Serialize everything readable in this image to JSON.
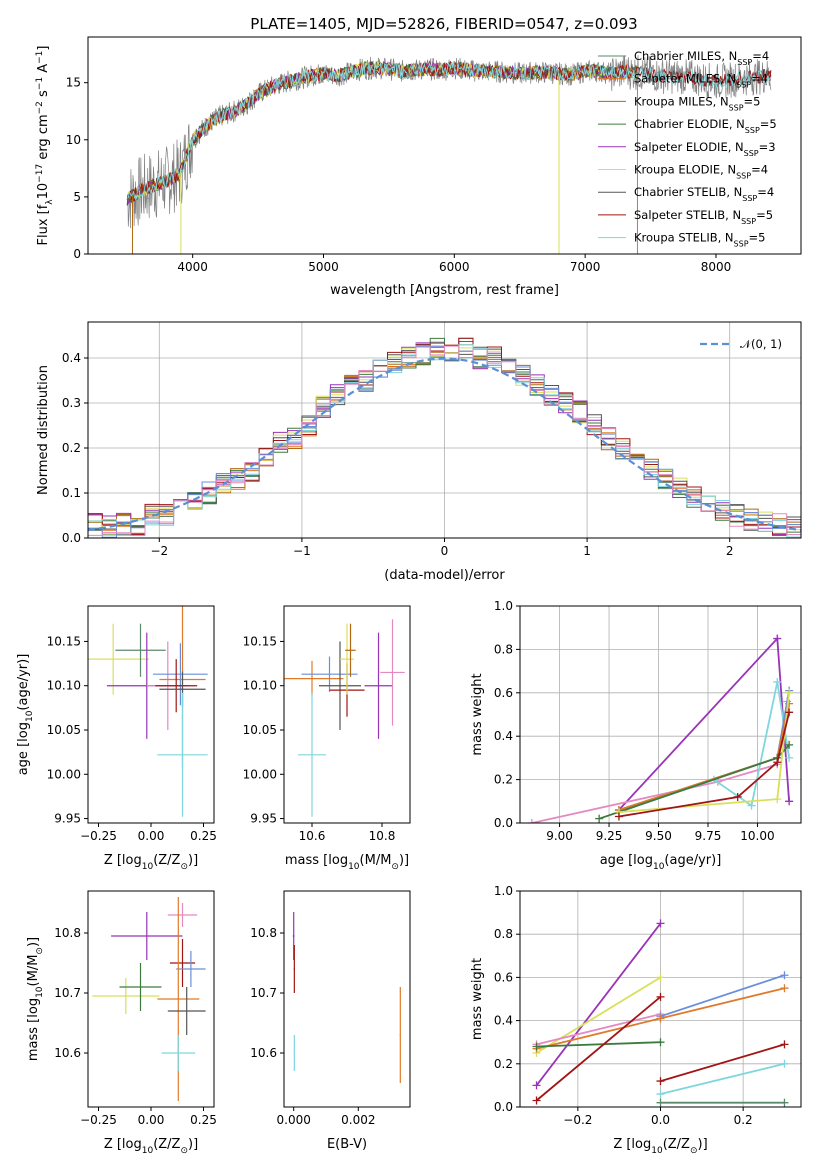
{
  "colors": {
    "Chabrier MILES": "#5b8a6a",
    "Salpeter MILES": "#e0731f",
    "Kroupa MILES": "#b06a10",
    "Chabrier ELODIE": "#3d7a3d",
    "Salpeter ELODIE": "#9933b8",
    "Kroupa ELODIE": "#d8e05a",
    "Chabrier STELIB": "#555555",
    "Salpeter STELIB": "#a01515",
    "Kroupa STELIB": "#7fd6dc",
    "extra_blue": "#6a8fd8",
    "extra_pink": "#e58ac0",
    "extra_orange": "#e07a2a",
    "normal_line": "#5b8fd6"
  },
  "chart_data": [
    {
      "type": "line",
      "title": "PLATE=1405, MJD=52826, FIBERID=0547, z=0.093",
      "xlabel": "wavelength [Angstrom, rest frame]",
      "ylabel_main": "Flux [f",
      "ylabel_sub": "λ",
      "ylabel_rest": "10",
      "ylabel_exp1": "−17",
      "ylabel_mid": " erg cm",
      "ylabel_exp2": "−2",
      "ylabel_mid2": " s",
      "ylabel_exp3": "−1",
      "ylabel_end": " A",
      "ylabel_exp4": "−1",
      "ylabel_close": "]",
      "xlim": [
        3200,
        8650
      ],
      "ylim": [
        0,
        19
      ],
      "xticks": [
        "4000",
        "5000",
        "6000",
        "7000",
        "8000"
      ],
      "xtick_values": [
        4000,
        5000,
        6000,
        7000,
        8000
      ],
      "yticks": [
        "0",
        "5",
        "10",
        "15"
      ],
      "ytick_values": [
        0,
        5,
        10,
        15
      ],
      "grid": false,
      "legend": [
        {
          "label": "Chabrier MILES, N",
          "sub": "SSP",
          "val": "=4"
        },
        {
          "label": "Salpeter MILES, N",
          "sub": "SSP",
          "val": "=4"
        },
        {
          "label": "Kroupa MILES, N",
          "sub": "SSP",
          "val": "=5"
        },
        {
          "label": "Chabrier ELODIE, N",
          "sub": "SSP",
          "val": "=5"
        },
        {
          "label": "Salpeter ELODIE, N",
          "sub": "SSP",
          "val": "=3"
        },
        {
          "label": "Kroupa ELODIE, N",
          "sub": "SSP",
          "val": "=4"
        },
        {
          "label": "Chabrier STELIB, N",
          "sub": "SSP",
          "val": "=4"
        },
        {
          "label": "Salpeter STELIB, N",
          "sub": "SSP",
          "val": "=5"
        },
        {
          "label": "Kroupa STELIB, N",
          "sub": "SSP",
          "val": "=5"
        }
      ],
      "spectrum_x": [
        3500,
        3600,
        3700,
        3800,
        3900,
        4000,
        4100,
        4200,
        4300,
        4400,
        4500,
        4600,
        4700,
        4800,
        4900,
        5000,
        5100,
        5200,
        5300,
        5400,
        5500,
        5600,
        5700,
        5800,
        5900,
        6000,
        6100,
        6200,
        6300,
        6400,
        6500,
        6600,
        6700,
        6800,
        6900,
        7000,
        7100,
        7200,
        7300,
        7400,
        7600,
        7800,
        8000,
        8200,
        8400
      ],
      "spectrum_y": [
        4.8,
        5.5,
        6.0,
        6.4,
        7.0,
        10.0,
        11.2,
        12.0,
        12.4,
        13.0,
        14.0,
        14.6,
        15.0,
        15.3,
        15.6,
        15.8,
        15.6,
        15.9,
        16.2,
        16.3,
        16.2,
        16.0,
        16.1,
        16.2,
        16.1,
        16.3,
        16.1,
        16.0,
        16.0,
        15.9,
        15.8,
        15.9,
        15.9,
        15.8,
        15.7,
        16.0,
        16.0,
        15.8,
        16.0,
        15.9,
        15.6,
        15.5,
        15.1,
        15.4,
        15.6
      ]
    },
    {
      "type": "bar",
      "xlabel": "(data-model)/error",
      "ylabel": "Normed distribution",
      "xlim": [
        -2.5,
        2.5
      ],
      "ylim": [
        0,
        0.48
      ],
      "xticks": [
        "−2",
        "−1",
        "0",
        "1",
        "2"
      ],
      "xtick_values": [
        -2,
        -1,
        0,
        1,
        2
      ],
      "yticks": [
        "0.0",
        "0.1",
        "0.2",
        "0.3",
        "0.4"
      ],
      "ytick_values": [
        0,
        0.1,
        0.2,
        0.3,
        0.4
      ],
      "grid": true,
      "legend_label": "𝒩(0, 1)",
      "bin_edges": [
        -2.5,
        -2.4,
        -2.3,
        -2.2,
        -2.1,
        -2.0,
        -1.9,
        -1.8,
        -1.7,
        -1.6,
        -1.5,
        -1.4,
        -1.3,
        -1.2,
        -1.1,
        -1.0,
        -0.9,
        -0.8,
        -0.7,
        -0.6,
        -0.5,
        -0.4,
        -0.3,
        -0.2,
        -0.1,
        0.0,
        0.1,
        0.2,
        0.3,
        0.4,
        0.5,
        0.6,
        0.7,
        0.8,
        0.9,
        1.0,
        1.1,
        1.2,
        1.3,
        1.4,
        1.5,
        1.6,
        1.7,
        1.8,
        1.9,
        2.0,
        2.1,
        2.2,
        2.3,
        2.4,
        2.5
      ],
      "hist_values": [
        0.03,
        0.025,
        0.03,
        0.03,
        0.05,
        0.05,
        0.07,
        0.08,
        0.1,
        0.12,
        0.13,
        0.15,
        0.18,
        0.21,
        0.22,
        0.25,
        0.29,
        0.32,
        0.34,
        0.35,
        0.38,
        0.39,
        0.4,
        0.41,
        0.42,
        0.41,
        0.42,
        0.4,
        0.4,
        0.38,
        0.36,
        0.34,
        0.32,
        0.3,
        0.28,
        0.25,
        0.22,
        0.2,
        0.18,
        0.15,
        0.13,
        0.11,
        0.09,
        0.08,
        0.06,
        0.05,
        0.04,
        0.035,
        0.03,
        0.025
      ]
    },
    {
      "type": "scatter",
      "xlabel": "Z [log",
      "xlabel_sub": "10",
      "xlabel_rest": "(Z/Z",
      "xlabel_sub2": "⊙",
      "xlabel_end": ")]",
      "ylabel": "age  [log",
      "ylabel_sub": "10",
      "ylabel_rest": "(age/yr)]",
      "xlim": [
        -0.3,
        0.3
      ],
      "ylim": [
        9.945,
        10.19
      ],
      "xticks": [
        "−0.25",
        "0.00",
        "0.25"
      ],
      "xtick_values": [
        -0.25,
        0,
        0.25
      ],
      "yticks": [
        "9.95",
        "10.00",
        "10.05",
        "10.10",
        "10.15"
      ],
      "ytick_values": [
        9.95,
        10.0,
        10.05,
        10.1,
        10.15
      ]
    },
    {
      "type": "scatter",
      "xlabel": "mass [log",
      "xlabel_sub": "10",
      "xlabel_rest": "(M/M",
      "xlabel_sub2": "⊙",
      "xlabel_end": ")]",
      "xlim": [
        10.52,
        10.88
      ],
      "ylim": [
        9.945,
        10.19
      ],
      "xticks": [
        "10.6",
        "10.8"
      ],
      "xtick_values": [
        10.6,
        10.8
      ],
      "yticks": [
        "9.95",
        "10.00",
        "10.05",
        "10.10",
        "10.15"
      ],
      "ytick_values": [
        9.95,
        10.0,
        10.05,
        10.1,
        10.15
      ]
    },
    {
      "type": "line",
      "xlabel": "age  [log",
      "xlabel_sub": "10",
      "xlabel_rest": "(age/yr)]",
      "ylabel": "mass weight",
      "xlim": [
        8.8,
        10.22
      ],
      "ylim": [
        0,
        1
      ],
      "xticks": [
        "9.00",
        "9.25",
        "9.50",
        "9.75",
        "10.00"
      ],
      "xtick_values": [
        9.0,
        9.25,
        9.5,
        9.75,
        10.0
      ],
      "yticks": [
        "0.0",
        "0.2",
        "0.4",
        "0.6",
        "0.8",
        "1.0"
      ],
      "ytick_values": [
        0,
        0.2,
        0.4,
        0.6,
        0.8,
        1.0
      ],
      "grid": true
    },
    {
      "type": "scatter",
      "xlabel": "Z [log",
      "xlabel_sub": "10",
      "xlabel_rest": "(Z/Z",
      "xlabel_sub2": "⊙",
      "xlabel_end": ")]",
      "ylabel": "mass [log",
      "ylabel_sub": "10",
      "ylabel_rest": "(M/M",
      "ylabel_sub2": "⊙",
      "ylabel_end": ")]",
      "xlim": [
        -0.3,
        0.3
      ],
      "ylim": [
        10.51,
        10.87
      ],
      "xticks": [
        "−0.25",
        "0.00",
        "0.25"
      ],
      "xtick_values": [
        -0.25,
        0,
        0.25
      ],
      "yticks": [
        "10.6",
        "10.7",
        "10.8"
      ],
      "ytick_values": [
        10.6,
        10.7,
        10.8
      ]
    },
    {
      "type": "scatter",
      "xlabel": "E(B-V)",
      "xlim": [
        -0.0003,
        0.0036
      ],
      "ylim": [
        10.51,
        10.87
      ],
      "xticks": [
        "0.000",
        "0.002"
      ],
      "xtick_values": [
        0,
        0.002
      ],
      "yticks": [
        "10.6",
        "10.7",
        "10.8"
      ],
      "ytick_values": [
        10.6,
        10.7,
        10.8
      ]
    },
    {
      "type": "line",
      "xlabel": "Z [log",
      "xlabel_sub": "10",
      "xlabel_rest": "(Z/Z",
      "xlabel_sub2": "⊙",
      "xlabel_end": ")]",
      "ylabel": "mass weight",
      "xlim": [
        -0.34,
        0.34
      ],
      "ylim": [
        0,
        1
      ],
      "xticks": [
        "−0.2",
        "0.0",
        "0.2"
      ],
      "xtick_values": [
        -0.2,
        0,
        0.2
      ],
      "yticks": [
        "0.0",
        "0.2",
        "0.4",
        "0.6",
        "0.8",
        "1.0"
      ],
      "ytick_values": [
        0,
        0.2,
        0.4,
        0.6,
        0.8,
        1.0
      ],
      "grid": true
    }
  ],
  "errorbars": {
    "age_vs_Z": [
      {
        "c": "Kroupa ELODIE",
        "x": -0.18,
        "y": 10.13,
        "xe": 0.17,
        "ye": 0.04
      },
      {
        "c": "Chabrier MILES",
        "x": -0.05,
        "y": 10.14,
        "xe": 0.12,
        "ye": 0.03
      },
      {
        "c": "Salpeter ELODIE",
        "x": -0.02,
        "y": 10.1,
        "xe": 0.19,
        "ye": 0.06
      },
      {
        "c": "extra_pink",
        "x": 0.08,
        "y": 10.1,
        "xe": 0.1,
        "ye": 0.05
      },
      {
        "c": "extra_blue",
        "x": 0.14,
        "y": 10.113,
        "xe": 0.13,
        "ye": 0.035
      },
      {
        "c": "extra_orange",
        "x": 0.15,
        "y": 10.107,
        "xe": 0.11,
        "ye": 0.1
      },
      {
        "c": "Salpeter STELIB",
        "x": 0.12,
        "y": 10.1,
        "xe": 0.1,
        "ye": 0.03
      },
      {
        "c": "Chabrier STELIB",
        "x": 0.15,
        "y": 10.096,
        "xe": 0.11,
        "ye": 0.02
      },
      {
        "c": "Kroupa STELIB",
        "x": 0.15,
        "y": 10.022,
        "xe": 0.12,
        "ye": 0.07
      }
    ],
    "age_vs_mass": [
      {
        "c": "extra_orange",
        "x": 10.6,
        "y": 10.108,
        "xe": 0.09,
        "ye": 0.02
      },
      {
        "c": "extra_blue",
        "x": 10.65,
        "y": 10.113,
        "xe": 0.08,
        "ye": 0.02
      },
      {
        "c": "Chabrier STELIB",
        "x": 10.68,
        "y": 10.1,
        "xe": 0.06,
        "ye": 0.05
      },
      {
        "c": "Salpeter STELIB",
        "x": 10.7,
        "y": 10.095,
        "xe": 0.05,
        "ye": 0.03
      },
      {
        "c": "Kroupa ELODIE",
        "x": 10.7,
        "y": 10.13,
        "xe": 0.02,
        "ye": 0.04
      },
      {
        "c": "Kroupa MILES",
        "x": 10.71,
        "y": 10.14,
        "xe": 0.015,
        "ye": 0.03
      },
      {
        "c": "Salpeter ELODIE",
        "x": 10.79,
        "y": 10.1,
        "xe": 0.04,
        "ye": 0.06
      },
      {
        "c": "extra_pink",
        "x": 10.83,
        "y": 10.115,
        "xe": 0.035,
        "ye": 0.06
      },
      {
        "c": "Kroupa STELIB",
        "x": 10.6,
        "y": 10.022,
        "xe": 0.04,
        "ye": 0.07
      }
    ],
    "mass_vs_Z": [
      {
        "c": "Salpeter ELODIE",
        "x": -0.02,
        "y": 10.795,
        "xe": 0.17,
        "ye": 0.04
      },
      {
        "c": "Kroupa ELODIE",
        "x": -0.12,
        "y": 10.695,
        "xe": 0.16,
        "ye": 0.03
      },
      {
        "c": "Chabrier ELODIE",
        "x": -0.05,
        "y": 10.71,
        "xe": 0.1,
        "ye": 0.04
      },
      {
        "c": "extra_pink",
        "x": 0.15,
        "y": 10.83,
        "xe": 0.07,
        "ye": 0.02
      },
      {
        "c": "Salpeter STELIB",
        "x": 0.15,
        "y": 10.75,
        "xe": 0.06,
        "ye": 0.04
      },
      {
        "c": "extra_blue",
        "x": 0.19,
        "y": 10.74,
        "xe": 0.07,
        "ye": 0.03
      },
      {
        "c": "extra_orange",
        "x": 0.13,
        "y": 10.69,
        "xe": 0.1,
        "ye": 0.17
      },
      {
        "c": "Chabrier STELIB",
        "x": 0.17,
        "y": 10.67,
        "xe": 0.09,
        "ye": 0.04
      },
      {
        "c": "Kroupa STELIB",
        "x": 0.13,
        "y": 10.6,
        "xe": 0.08,
        "ye": 0.03
      }
    ],
    "mass_vs_EBV": [
      {
        "c": "Salpeter ELODIE",
        "x": 0.0,
        "y": 10.795,
        "xe": 3e-05,
        "ye": 0.04
      },
      {
        "c": "Salpeter STELIB",
        "x": 2e-05,
        "y": 10.74,
        "xe": 2e-05,
        "ye": 0.04
      },
      {
        "c": "Kroupa STELIB",
        "x": 2e-05,
        "y": 10.6,
        "xe": 2e-05,
        "ye": 0.03
      },
      {
        "c": "extra_orange",
        "x": 0.0033,
        "y": 10.63,
        "xe": 2e-05,
        "ye": 0.08
      }
    ]
  },
  "weights_age": [
    {
      "c": "Salpeter ELODIE",
      "pts": [
        [
          9.3,
          0.06
        ],
        [
          10.1,
          0.85
        ],
        [
          10.16,
          0.1
        ]
      ]
    },
    {
      "c": "extra_pink",
      "pts": [
        [
          8.86,
          0.0
        ],
        [
          9.8,
          0.19
        ],
        [
          10.1,
          0.27
        ],
        [
          10.15,
          0.56
        ]
      ]
    },
    {
      "c": "Kroupa STELIB",
      "pts": [
        [
          9.3,
          0.05
        ],
        [
          9.78,
          0.2
        ],
        [
          9.97,
          0.08
        ],
        [
          10.1,
          0.65
        ],
        [
          10.16,
          0.3
        ]
      ]
    },
    {
      "c": "extra_blue",
      "pts": [
        [
          9.3,
          0.06
        ],
        [
          10.1,
          0.3
        ],
        [
          10.16,
          0.61
        ]
      ]
    },
    {
      "c": "extra_orange",
      "pts": [
        [
          9.3,
          0.06
        ],
        [
          10.1,
          0.3
        ],
        [
          10.16,
          0.55
        ]
      ]
    },
    {
      "c": "Chabrier ELODIE",
      "pts": [
        [
          9.2,
          0.02
        ],
        [
          10.1,
          0.3
        ],
        [
          10.16,
          0.36
        ]
      ]
    },
    {
      "c": "Kroupa ELODIE",
      "pts": [
        [
          9.3,
          0.05
        ],
        [
          10.1,
          0.11
        ],
        [
          10.16,
          0.6
        ]
      ]
    },
    {
      "c": "Salpeter STELIB",
      "pts": [
        [
          9.3,
          0.03
        ],
        [
          9.9,
          0.12
        ],
        [
          10.1,
          0.28
        ],
        [
          10.16,
          0.51
        ]
      ]
    }
  ],
  "weights_Z": [
    {
      "c": "Salpeter ELODIE",
      "pts": [
        [
          -0.3,
          0.1
        ],
        [
          0.0,
          0.85
        ]
      ]
    },
    {
      "c": "Kroupa ELODIE",
      "pts": [
        [
          -0.3,
          0.25
        ],
        [
          0.0,
          0.6
        ]
      ]
    },
    {
      "c": "Kroupa STELIB",
      "pts": [
        [
          0.0,
          0.06
        ],
        [
          0.3,
          0.2
        ]
      ]
    },
    {
      "c": "extra_pink",
      "pts": [
        [
          -0.3,
          0.29
        ],
        [
          0.0,
          0.43
        ]
      ]
    },
    {
      "c": "extra_blue",
      "pts": [
        [
          0.0,
          0.42
        ],
        [
          0.3,
          0.61
        ]
      ]
    },
    {
      "c": "extra_orange",
      "pts": [
        [
          -0.3,
          0.27
        ],
        [
          0.0,
          0.41
        ],
        [
          0.3,
          0.55
        ]
      ]
    },
    {
      "c": "Chabrier ELODIE",
      "pts": [
        [
          -0.3,
          0.28
        ],
        [
          0.0,
          0.3
        ]
      ]
    },
    {
      "c": "Chabrier MILES",
      "pts": [
        [
          0.0,
          0.02
        ],
        [
          0.3,
          0.02
        ]
      ]
    },
    {
      "c": "Salpeter STELIB",
      "pts": [
        [
          -0.3,
          0.03
        ],
        [
          0.0,
          0.51
        ]
      ]
    },
    {
      "c": "Salpeter STELIB",
      "pts": [
        [
          0.0,
          0.12
        ],
        [
          0.3,
          0.29
        ]
      ]
    }
  ]
}
